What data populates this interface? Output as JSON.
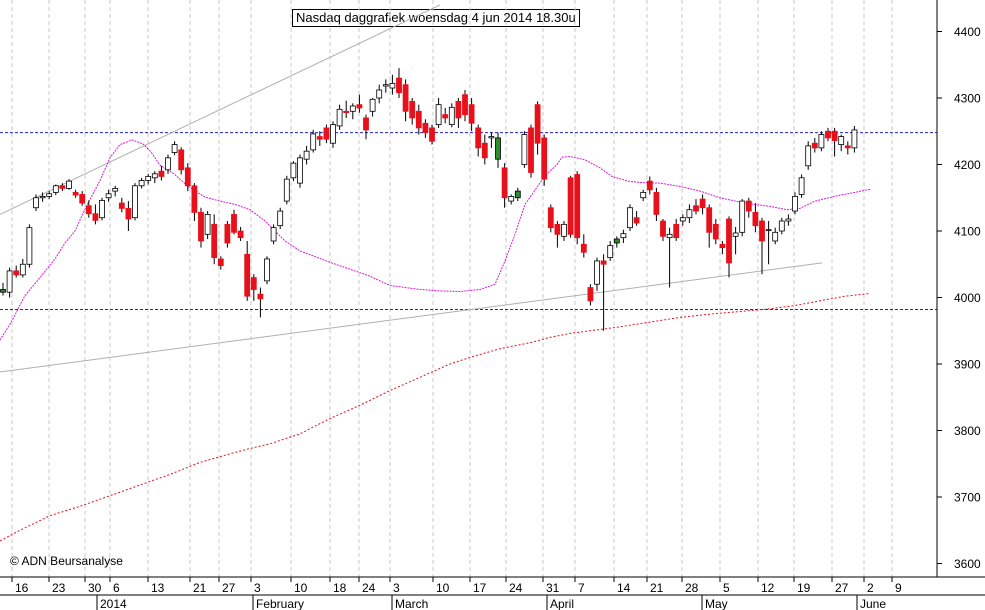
{
  "chart_data": {
    "type": "candlestick",
    "title": "Nasdaq daggrafiek woensdag 4 jun 2014 18.30u",
    "copyright": "© ADN Beursanalyse",
    "ylim": [
      3560,
      4440
    ],
    "y_ticks": [
      3600,
      3700,
      3800,
      3900,
      4000,
      4100,
      4200,
      4300,
      4400
    ],
    "x_day_labels": [
      "16",
      "23",
      "30",
      "6",
      "13",
      "21",
      "27",
      "3",
      "10",
      "18",
      "24",
      "3",
      "10",
      "17",
      "24",
      "31",
      "7",
      "14",
      "21",
      "28",
      "5",
      "12",
      "19",
      "27",
      "2",
      "9"
    ],
    "x_month_labels": [
      "2014",
      "February",
      "March",
      "April",
      "May",
      "June"
    ],
    "colors": {
      "up": "#ffffff",
      "down": "#e8101a",
      "reversal": "#2e8b2e",
      "ma_short": "#d81ad8",
      "ma_long": "#e8101a",
      "horizontal": "#2020cc",
      "trendline": "#b0b0b0",
      "grid": "#c8c8c8"
    },
    "horizontal_levels": [
      4248,
      3982
    ],
    "candles": [
      [
        4012,
        4022,
        4003,
        4008
      ],
      [
        4008,
        4045,
        4000,
        4040
      ],
      [
        4040,
        4048,
        4030,
        4034
      ],
      [
        4034,
        4058,
        4030,
        4050
      ],
      [
        4050,
        4110,
        4045,
        4105
      ],
      [
        4135,
        4155,
        4130,
        4150
      ],
      [
        4150,
        4158,
        4144,
        4152
      ],
      [
        4152,
        4160,
        4148,
        4156
      ],
      [
        4158,
        4170,
        4154,
        4168
      ],
      [
        4168,
        4172,
        4160,
        4164
      ],
      [
        4164,
        4178,
        4162,
        4175
      ],
      [
        4158,
        4162,
        4150,
        4154
      ],
      [
        4155,
        4160,
        4138,
        4142
      ],
      [
        4138,
        4146,
        4120,
        4126
      ],
      [
        4126,
        4140,
        4110,
        4116
      ],
      [
        4120,
        4150,
        4116,
        4146
      ],
      [
        4150,
        4162,
        4144,
        4156
      ],
      [
        4160,
        4168,
        4152,
        4164
      ],
      [
        4142,
        4150,
        4128,
        4134
      ],
      [
        4134,
        4145,
        4100,
        4118
      ],
      [
        4120,
        4172,
        4116,
        4168
      ],
      [
        4168,
        4180,
        4164,
        4176
      ],
      [
        4176,
        4186,
        4170,
        4182
      ],
      [
        4180,
        4190,
        4172,
        4186
      ],
      [
        4190,
        4198,
        4176,
        4182
      ],
      [
        4192,
        4215,
        4186,
        4210
      ],
      [
        4218,
        4235,
        4214,
        4230
      ],
      [
        4222,
        4226,
        4185,
        4192
      ],
      [
        4195,
        4202,
        4160,
        4168
      ],
      [
        4168,
        4172,
        4115,
        4128
      ],
      [
        4128,
        4135,
        4075,
        4085
      ],
      [
        4095,
        4130,
        4088,
        4125
      ],
      [
        4110,
        4125,
        4050,
        4060
      ],
      [
        4058,
        4062,
        4042,
        4048
      ],
      [
        4110,
        4115,
        4075,
        4082
      ],
      [
        4125,
        4132,
        4095,
        4098
      ],
      [
        4100,
        4106,
        4085,
        4090
      ],
      [
        4065,
        4085,
        3995,
        4002
      ],
      [
        4030,
        4035,
        3995,
        4012
      ],
      [
        4005,
        4015,
        3970,
        3998
      ],
      [
        4025,
        4062,
        4020,
        4058
      ],
      [
        4085,
        4110,
        4080,
        4105
      ],
      [
        4108,
        4135,
        4103,
        4130
      ],
      [
        4145,
        4183,
        4140,
        4178
      ],
      [
        4180,
        4205,
        4175,
        4202
      ],
      [
        4172,
        4215,
        4165,
        4210
      ],
      [
        4208,
        4228,
        4200,
        4220
      ],
      [
        4222,
        4252,
        4218,
        4246
      ],
      [
        4242,
        4250,
        4228,
        4238
      ],
      [
        4255,
        4260,
        4232,
        4238
      ],
      [
        4232,
        4265,
        4225,
        4260
      ],
      [
        4258,
        4290,
        4252,
        4283
      ],
      [
        4280,
        4296,
        4270,
        4278
      ],
      [
        4280,
        4292,
        4268,
        4288
      ],
      [
        4290,
        4305,
        4278,
        4285
      ],
      [
        4270,
        4275,
        4238,
        4252
      ],
      [
        4280,
        4300,
        4272,
        4298
      ],
      [
        4300,
        4320,
        4292,
        4312
      ],
      [
        4318,
        4328,
        4308,
        4320
      ],
      [
        4315,
        4335,
        4305,
        4322
      ],
      [
        4330,
        4345,
        4300,
        4308
      ],
      [
        4320,
        4328,
        4265,
        4280
      ],
      [
        4295,
        4300,
        4260,
        4270
      ],
      [
        4280,
        4290,
        4245,
        4255
      ],
      [
        4262,
        4268,
        4240,
        4248
      ],
      [
        4255,
        4260,
        4230,
        4235
      ],
      [
        4260,
        4300,
        4255,
        4290
      ],
      [
        4275,
        4285,
        4262,
        4270
      ],
      [
        4260,
        4292,
        4256,
        4286
      ],
      [
        4295,
        4300,
        4255,
        4270
      ],
      [
        4305,
        4312,
        4265,
        4275
      ],
      [
        4290,
        4300,
        4250,
        4262
      ],
      [
        4255,
        4260,
        4212,
        4225
      ],
      [
        4232,
        4245,
        4200,
        4210
      ],
      [
        4240,
        4248,
        4225,
        4242
      ],
      [
        4240,
        4248,
        4195,
        4208
      ],
      [
        4195,
        4202,
        4135,
        4150
      ],
      [
        4145,
        4155,
        4140,
        4152
      ],
      [
        4150,
        4165,
        4145,
        4160
      ],
      [
        4200,
        4250,
        4195,
        4245
      ],
      [
        4255,
        4260,
        4180,
        4188
      ],
      [
        4290,
        4295,
        4215,
        4232
      ],
      [
        4240,
        4245,
        4168,
        4178
      ],
      [
        4135,
        4140,
        4098,
        4105
      ],
      [
        4110,
        4115,
        4075,
        4095
      ],
      [
        4092,
        4115,
        4085,
        4110
      ],
      [
        4180,
        4183,
        4090,
        4095
      ],
      [
        4185,
        4190,
        4080,
        4090
      ],
      [
        4080,
        4095,
        4060,
        4068
      ],
      [
        4015,
        4020,
        3988,
        3995
      ],
      [
        4020,
        4060,
        4010,
        4055
      ],
      [
        4055,
        4065,
        3950,
        4050
      ],
      [
        4060,
        4085,
        4055,
        4078
      ],
      [
        4082,
        4092,
        4075,
        4088
      ],
      [
        4090,
        4102,
        4082,
        4096
      ],
      [
        4105,
        4140,
        4100,
        4135
      ],
      [
        4120,
        4130,
        4108,
        4112
      ],
      [
        4150,
        4162,
        4145,
        4158
      ],
      [
        4175,
        4182,
        4155,
        4162
      ],
      [
        4158,
        4165,
        4115,
        4125
      ],
      [
        4115,
        4118,
        4085,
        4092
      ],
      [
        4090,
        4105,
        4015,
        4095
      ],
      [
        4110,
        4118,
        4085,
        4090
      ],
      [
        4115,
        4125,
        4108,
        4120
      ],
      [
        4120,
        4140,
        4112,
        4132
      ],
      [
        4138,
        4148,
        4125,
        4130
      ],
      [
        4148,
        4155,
        4125,
        4135
      ],
      [
        4135,
        4140,
        4075,
        4098
      ],
      [
        4110,
        4118,
        4080,
        4088
      ],
      [
        4080,
        4085,
        4065,
        4075
      ],
      [
        4118,
        4122,
        4030,
        4052
      ],
      [
        4092,
        4106,
        4065,
        4097
      ],
      [
        4098,
        4148,
        4092,
        4145
      ],
      [
        4145,
        4150,
        4120,
        4130
      ],
      [
        4128,
        4142,
        4098,
        4108
      ],
      [
        4115,
        4120,
        4035,
        4085
      ],
      [
        4102,
        4115,
        4050,
        4102
      ],
      [
        4085,
        4105,
        4080,
        4098
      ],
      [
        4100,
        4120,
        4095,
        4115
      ],
      [
        4115,
        4125,
        4108,
        4118
      ],
      [
        4130,
        4158,
        4125,
        4152
      ],
      [
        4155,
        4185,
        4150,
        4180
      ],
      [
        4198,
        4235,
        4192,
        4228
      ],
      [
        4232,
        4240,
        4218,
        4225
      ],
      [
        4225,
        4250,
        4220,
        4245
      ],
      [
        4250,
        4255,
        4235,
        4240
      ],
      [
        4250,
        4255,
        4212,
        4236
      ],
      [
        4230,
        4245,
        4220,
        4242
      ],
      [
        4228,
        4235,
        4215,
        4225
      ],
      [
        4225,
        4258,
        4218,
        4252
      ]
    ],
    "ma_short": [
      [
        0,
        3936
      ],
      [
        12,
        3965
      ],
      [
        25,
        4003
      ],
      [
        40,
        4030
      ],
      [
        55,
        4058
      ],
      [
        65,
        4082
      ],
      [
        75,
        4100
      ],
      [
        85,
        4133
      ],
      [
        100,
        4176
      ],
      [
        110,
        4210
      ],
      [
        120,
        4230
      ],
      [
        132,
        4237
      ],
      [
        143,
        4231
      ],
      [
        151,
        4219
      ],
      [
        160,
        4199
      ],
      [
        174,
        4186
      ],
      [
        188,
        4167
      ],
      [
        205,
        4151
      ],
      [
        220,
        4145
      ],
      [
        235,
        4140
      ],
      [
        250,
        4132
      ],
      [
        265,
        4115
      ],
      [
        275,
        4100
      ],
      [
        285,
        4085
      ],
      [
        300,
        4070
      ],
      [
        330,
        4053
      ],
      [
        370,
        4032
      ],
      [
        390,
        4018
      ],
      [
        420,
        4012
      ],
      [
        440,
        4010
      ],
      [
        460,
        4009
      ],
      [
        480,
        4012
      ],
      [
        495,
        4020
      ],
      [
        505,
        4055
      ],
      [
        515,
        4095
      ],
      [
        525,
        4140
      ],
      [
        545,
        4183
      ],
      [
        557,
        4200
      ],
      [
        562,
        4211
      ],
      [
        570,
        4212
      ],
      [
        585,
        4207
      ],
      [
        600,
        4195
      ],
      [
        612,
        4182
      ],
      [
        628,
        4175
      ],
      [
        640,
        4173
      ],
      [
        660,
        4172
      ],
      [
        680,
        4167
      ],
      [
        700,
        4160
      ],
      [
        720,
        4150
      ],
      [
        745,
        4142
      ],
      [
        770,
        4137
      ],
      [
        787,
        4132
      ],
      [
        800,
        4134
      ],
      [
        815,
        4145
      ],
      [
        840,
        4154
      ],
      [
        855,
        4158
      ],
      [
        871,
        4163
      ]
    ],
    "ma_long": [
      [
        0,
        3634
      ],
      [
        20,
        3650
      ],
      [
        50,
        3672
      ],
      [
        80,
        3686
      ],
      [
        110,
        3702
      ],
      [
        140,
        3718
      ],
      [
        170,
        3734
      ],
      [
        200,
        3752
      ],
      [
        230,
        3765
      ],
      [
        250,
        3773
      ],
      [
        270,
        3780
      ],
      [
        300,
        3795
      ],
      [
        330,
        3818
      ],
      [
        360,
        3838
      ],
      [
        390,
        3860
      ],
      [
        420,
        3880
      ],
      [
        450,
        3900
      ],
      [
        470,
        3910
      ],
      [
        500,
        3923
      ],
      [
        530,
        3932
      ],
      [
        550,
        3940
      ],
      [
        570,
        3946
      ],
      [
        590,
        3950
      ],
      [
        620,
        3956
      ],
      [
        650,
        3963
      ],
      [
        680,
        3970
      ],
      [
        710,
        3975
      ],
      [
        740,
        3979
      ],
      [
        770,
        3983
      ],
      [
        795,
        3988
      ],
      [
        820,
        3995
      ],
      [
        845,
        4002
      ],
      [
        870,
        4006
      ]
    ],
    "trendlines": [
      [
        [
          0,
          4125
        ],
        [
          440,
          4440
        ]
      ],
      [
        [
          0,
          3888
        ],
        [
          822,
          4052
        ]
      ]
    ]
  }
}
